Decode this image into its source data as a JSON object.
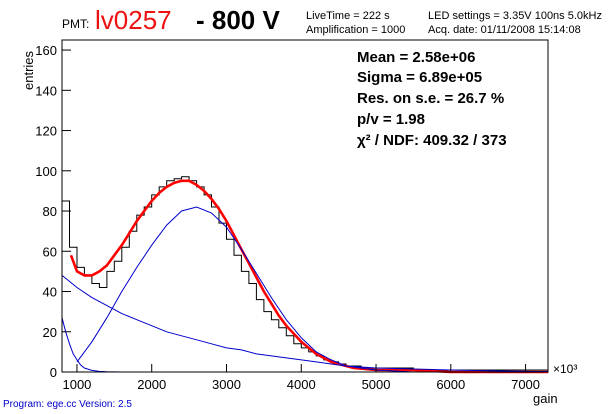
{
  "header": {
    "pmt_label": "PMT:",
    "pmt_id": "lv0257",
    "voltage": "- 800 V",
    "live_time": "LiveTime = 222 s",
    "amplification": "Amplification = 1000",
    "led_settings": "LED settings = 3.35V 100ns 5.0kHz",
    "acq_date": "Acq. date:  01/11/2008 15:14:08"
  },
  "stats": {
    "mean": "Mean = 2.58e+06",
    "sigma": "Sigma = 6.89e+05",
    "res": "Res. on s.e. =  26.7 %",
    "pv": "p/v =  1.98",
    "chi2": "χ² / NDF:   409.32 / 373"
  },
  "footer": "Program: ege.cc Version: 2.5",
  "colors": {
    "fit": "#ff0000",
    "components": "#0000cc",
    "histogram": "#000000",
    "title_id": "#ee1111"
  },
  "chart_data": {
    "type": "line",
    "xlabel": "gain",
    "ylabel": "entries",
    "x_multiplier_label": "×10³",
    "xlim": [
      800,
      7300
    ],
    "ylim": [
      0,
      165
    ],
    "x_ticks": [
      1000,
      2000,
      3000,
      4000,
      5000,
      6000,
      7000
    ],
    "y_ticks": [
      0,
      20,
      40,
      60,
      80,
      100,
      120,
      140,
      160
    ],
    "series": [
      {
        "style": "histogram",
        "x": [
          800,
          900,
          1000,
          1100,
          1200,
          1300,
          1400,
          1500,
          1600,
          1700,
          1800,
          1900,
          2000,
          2100,
          2200,
          2300,
          2400,
          2500,
          2600,
          2700,
          2800,
          2900,
          3000,
          3100,
          3200,
          3300,
          3400,
          3500,
          3600,
          3700,
          3800,
          3900,
          4000,
          4100,
          4200,
          4300,
          4400,
          4500,
          4600,
          4700,
          4800,
          5000,
          5500,
          6000,
          6500,
          7000,
          7300
        ],
        "y": [
          85,
          62,
          52,
          48,
          44,
          42,
          50,
          55,
          62,
          70,
          78,
          82,
          88,
          92,
          95,
          96,
          97,
          95,
          92,
          88,
          82,
          74,
          66,
          58,
          50,
          44,
          36,
          30,
          26,
          22,
          18,
          14,
          12,
          10,
          8,
          6,
          5,
          4,
          3,
          3,
          2,
          2,
          1,
          1,
          1,
          1,
          1
        ]
      },
      {
        "style": "fit",
        "x": [
          920,
          1000,
          1100,
          1200,
          1300,
          1400,
          1500,
          1600,
          1700,
          1800,
          1900,
          2000,
          2100,
          2200,
          2300,
          2400,
          2500,
          2600,
          2700,
          2800,
          2900,
          3000,
          3100,
          3200,
          3300,
          3400,
          3500,
          3600,
          3700,
          3800,
          3900,
          4000,
          4100,
          4200,
          4300,
          4400,
          4500,
          4700,
          5000,
          5500,
          6000,
          7300
        ],
        "y": [
          58,
          50,
          48,
          48,
          50,
          53,
          58,
          63,
          69,
          75,
          80,
          85,
          89,
          92,
          94,
          95,
          95,
          93,
          90,
          86,
          81,
          75,
          68,
          61,
          54,
          47,
          40,
          34,
          28,
          23,
          19,
          15,
          12,
          9,
          7,
          5,
          4,
          2,
          1,
          1,
          0,
          0
        ]
      },
      {
        "style": "component",
        "x": [
          1000,
          1200,
          1400,
          1600,
          1800,
          2000,
          2200,
          2400,
          2600,
          2800,
          3000,
          3200,
          3400,
          3600,
          3800,
          4000,
          4200,
          4400,
          4600,
          5000,
          5500,
          7300
        ],
        "y": [
          5,
          15,
          27,
          40,
          52,
          63,
          73,
          80,
          82,
          79,
          72,
          61,
          49,
          37,
          26,
          17,
          10,
          6,
          3,
          1,
          0,
          0
        ]
      },
      {
        "style": "component",
        "x": [
          800,
          1000,
          1200,
          1400,
          1600,
          1800,
          2000,
          2200,
          2400,
          2600,
          2800,
          3000,
          3200,
          3400,
          3600,
          3800,
          4000,
          4200,
          4400,
          4600,
          4800,
          5000,
          5500,
          6000,
          6500,
          7000,
          7300
        ],
        "y": [
          48,
          42,
          37,
          33,
          29,
          26,
          23,
          20,
          18,
          16,
          14,
          12,
          11,
          9,
          8,
          7,
          6,
          5,
          4,
          3,
          2.5,
          2,
          1.5,
          1,
          0.6,
          0.3,
          0.2
        ]
      },
      {
        "style": "component",
        "x": [
          800,
          850,
          900,
          950,
          1000,
          1050,
          1100,
          1200,
          1300,
          1400,
          1600,
          2000,
          7300
        ],
        "y": [
          27,
          20,
          14,
          9,
          6,
          3.5,
          2,
          0.8,
          0.3,
          0.1,
          0,
          0,
          0
        ]
      }
    ]
  }
}
